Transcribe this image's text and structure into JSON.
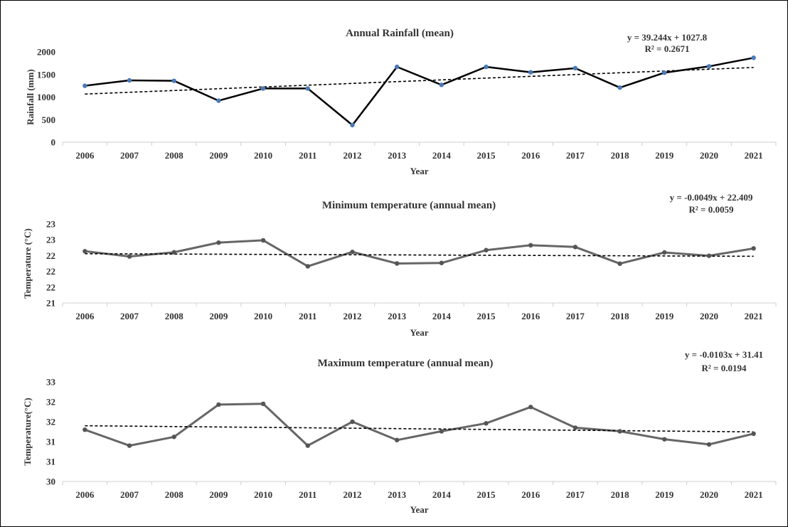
{
  "chart_data": [
    {
      "type": "line",
      "title": "Annual Rainfall (mean)",
      "xlabel": "Year",
      "ylabel": "Rainfall (mm)",
      "categories": [
        "2006",
        "2007",
        "2008",
        "2009",
        "2010",
        "2011",
        "2012",
        "2013",
        "2014",
        "2015",
        "2016",
        "2017",
        "2018",
        "2019",
        "2020",
        "2021"
      ],
      "ylim": [
        0,
        2000
      ],
      "yticks": [
        "0",
        "500",
        "1000",
        "1500",
        "2000"
      ],
      "series": [
        {
          "values": [
            1250,
            1370,
            1360,
            920,
            1190,
            1190,
            380,
            1670,
            1270,
            1670,
            1550,
            1640,
            1210,
            1540,
            1680,
            1870
          ]
        }
      ],
      "trendline": {
        "equation": "y = 39.244x + 1027.8",
        "r2": "R² = 0.2671",
        "slope": 39.244,
        "intercept": 1027.8
      },
      "line_color": "#000000",
      "marker_color": "#4a7ab8"
    },
    {
      "type": "line",
      "title": "Minimum temperature (annual mean)",
      "xlabel": "Year",
      "ylabel": "Temperature (°C)",
      "categories": [
        "2006",
        "2007",
        "2008",
        "2009",
        "2010",
        "2011",
        "2012",
        "2013",
        "2014",
        "2015",
        "2016",
        "2017",
        "2018",
        "2019",
        "2020",
        "2021"
      ],
      "ylim": [
        21,
        23.25
      ],
      "yticks": [
        "21",
        "22",
        "22",
        "22",
        "23",
        "23"
      ],
      "series": [
        {
          "values": [
            22.475,
            22.325,
            22.445,
            22.72,
            22.785,
            22.045,
            22.455,
            22.125,
            22.14,
            22.505,
            22.645,
            22.595,
            22.12,
            22.44,
            22.345,
            22.555
          ]
        }
      ],
      "trendline": {
        "equation": "y = -0.0049x + 22.409",
        "r2": "R² = 0.0059",
        "slope": -0.0049,
        "intercept": 22.409
      },
      "line_color": "#666666",
      "marker_color": "#555555"
    },
    {
      "type": "line",
      "title": "Maximum temperature (annual mean)",
      "xlabel": "Year",
      "ylabel": "Temperature(°C)",
      "categories": [
        "2006",
        "2007",
        "2008",
        "2009",
        "2010",
        "2011",
        "2012",
        "2013",
        "2014",
        "2015",
        "2016",
        "2017",
        "2018",
        "2019",
        "2020",
        "2021"
      ],
      "ylim": [
        30,
        32.5
      ],
      "yticks": [
        "30",
        "31",
        "31",
        "32",
        "32",
        "33"
      ],
      "series": [
        {
          "values": [
            31.3,
            30.9,
            31.12,
            31.93,
            31.95,
            30.9,
            31.5,
            31.04,
            31.26,
            31.46,
            31.87,
            31.35,
            31.26,
            31.06,
            30.93,
            31.2
          ]
        }
      ],
      "trendline": {
        "equation": "y = -0.0103x + 31.41",
        "r2": "R² = 0.0194",
        "slope": -0.0103,
        "intercept": 31.41
      },
      "line_color": "#666666",
      "marker_color": "#555555"
    }
  ]
}
